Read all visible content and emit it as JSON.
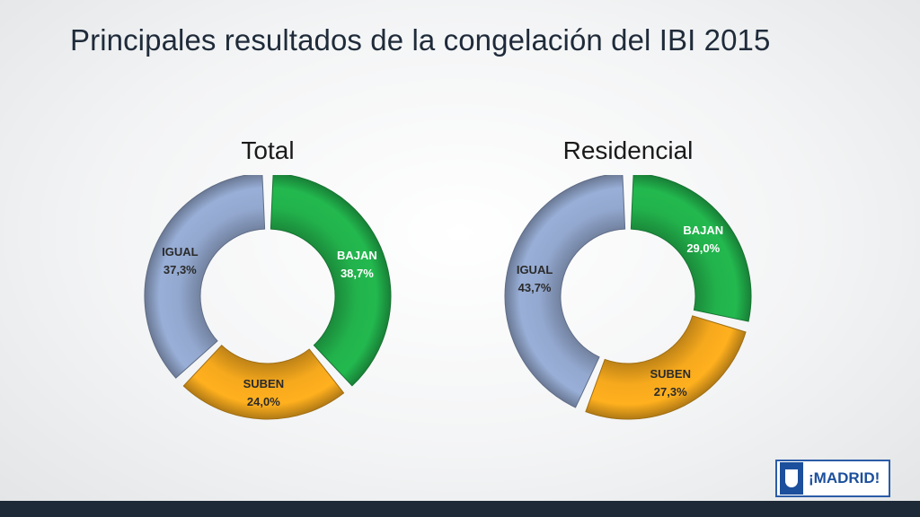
{
  "title": "Principales resultados de la congelación del IBI 2015",
  "logo_text": "¡MADRID!",
  "colors": {
    "bajan": "#22b24c",
    "suben": "#f6a91d",
    "igual": "#93a8cf",
    "bajan_text": "#ffffff",
    "suben_text": "#2a2a2a",
    "igual_text": "#2a2a2a"
  },
  "chart_data": [
    {
      "type": "pie",
      "title": "Total",
      "categories": [
        "BAJAN",
        "SUBEN",
        "IGUAL"
      ],
      "values": [
        38.7,
        24.0,
        37.3
      ],
      "labels": [
        "38,7%",
        "24,0%",
        "37,3%"
      ]
    },
    {
      "type": "pie",
      "title": "Residencial",
      "categories": [
        "BAJAN",
        "SUBEN",
        "IGUAL"
      ],
      "values": [
        29.0,
        27.3,
        43.7
      ],
      "labels": [
        "29,0%",
        "27,3%",
        "43,7%"
      ]
    }
  ]
}
